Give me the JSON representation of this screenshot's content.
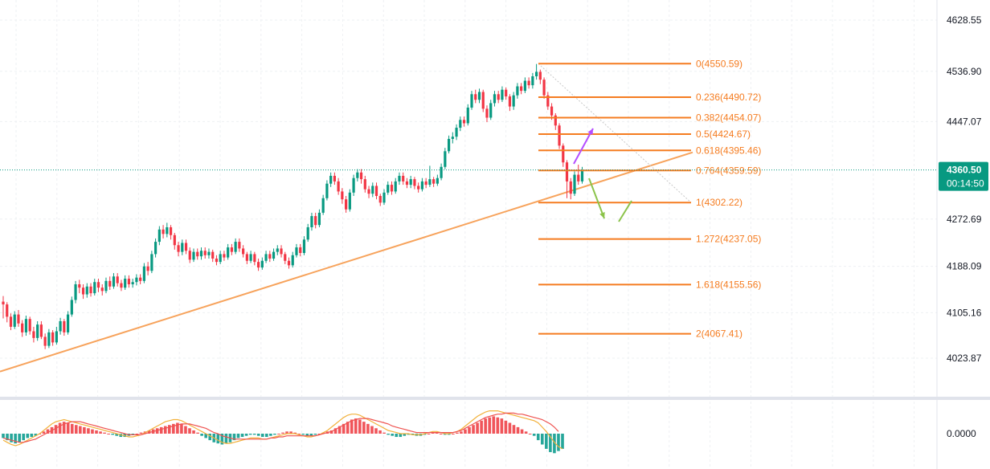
{
  "chart_data": {
    "type": "candlestick",
    "price_axis": {
      "ticks": [
        "4628.55",
        "4536.90",
        "4447.07",
        "4272.69",
        "4188.09",
        "4105.16",
        "4023.87"
      ],
      "tick_values": [
        4628.55,
        4536.9,
        4447.07,
        4272.69,
        4188.09,
        4105.16,
        4023.87
      ],
      "range": [
        3960,
        4660
      ]
    },
    "current_price": {
      "value": 4360.5,
      "label": "4360.50",
      "countdown": "00:14:50",
      "color": "#089981"
    },
    "fibonacci": {
      "color": "#f57c20",
      "levels": [
        {
          "label": "0(4550.59)",
          "price": 4550.59
        },
        {
          "label": "0.236(4490.72)",
          "price": 4490.72
        },
        {
          "label": "0.382(4454.07)",
          "price": 4454.07
        },
        {
          "label": "0.5(4424.67)",
          "price": 4424.67
        },
        {
          "label": "0.618(4395.46)",
          "price": 4395.46
        },
        {
          "label": "0.764(4359.59)",
          "price": 4359.59
        },
        {
          "label": "1(4302.22)",
          "price": 4302.22
        },
        {
          "label": "1.272(4237.05)",
          "price": 4237.05
        },
        {
          "label": "1.618(4155.56)",
          "price": 4155.56
        },
        {
          "label": "2(4067.41)",
          "price": 4067.41
        }
      ]
    },
    "trendline": {
      "color": "#f7a35c",
      "from_price": 4000,
      "to_price": 4392
    },
    "annotations": [
      {
        "kind": "arrow-up",
        "color": "#b44dff"
      },
      {
        "kind": "arrow-down",
        "color": "#8bc34a"
      },
      {
        "kind": "arrow-up",
        "color": "#8bc34a"
      }
    ],
    "candles": [
      [
        4125,
        4120,
        4135,
        4095
      ],
      [
        4120,
        4098,
        4124,
        4088
      ],
      [
        4098,
        4080,
        4104,
        4074
      ],
      [
        4080,
        4102,
        4108,
        4076
      ],
      [
        4102,
        4086,
        4110,
        4080
      ],
      [
        4086,
        4070,
        4092,
        4062
      ],
      [
        4070,
        4094,
        4100,
        4064
      ],
      [
        4094,
        4072,
        4098,
        4066
      ],
      [
        4072,
        4060,
        4080,
        4052
      ],
      [
        4060,
        4084,
        4090,
        4055
      ],
      [
        4084,
        4062,
        4090,
        4058
      ],
      [
        4062,
        4046,
        4068,
        4040
      ],
      [
        4046,
        4070,
        4076,
        4042
      ],
      [
        4070,
        4052,
        4074,
        4046
      ],
      [
        4052,
        4072,
        4080,
        4048
      ],
      [
        4072,
        4090,
        4096,
        4066
      ],
      [
        4090,
        4070,
        4094,
        4064
      ],
      [
        4070,
        4102,
        4108,
        4066
      ],
      [
        4102,
        4128,
        4134,
        4098
      ],
      [
        4128,
        4156,
        4162,
        4122
      ],
      [
        4156,
        4150,
        4164,
        4140
      ],
      [
        4150,
        4138,
        4156,
        4130
      ],
      [
        4138,
        4152,
        4158,
        4132
      ],
      [
        4152,
        4140,
        4158,
        4134
      ],
      [
        4140,
        4160,
        4166,
        4136
      ],
      [
        4160,
        4150,
        4166,
        4142
      ],
      [
        4150,
        4144,
        4156,
        4136
      ],
      [
        4144,
        4162,
        4168,
        4140
      ],
      [
        4162,
        4152,
        4170,
        4146
      ],
      [
        4152,
        4170,
        4176,
        4148
      ],
      [
        4170,
        4158,
        4176,
        4152
      ],
      [
        4158,
        4150,
        4164,
        4144
      ],
      [
        4150,
        4166,
        4172,
        4146
      ],
      [
        4166,
        4156,
        4172,
        4150
      ],
      [
        4156,
        4160,
        4166,
        4150
      ],
      [
        4160,
        4168,
        4174,
        4154
      ],
      [
        4168,
        4162,
        4174,
        4156
      ],
      [
        4162,
        4188,
        4194,
        4158
      ],
      [
        4188,
        4180,
        4196,
        4172
      ],
      [
        4180,
        4210,
        4216,
        4176
      ],
      [
        4210,
        4232,
        4238,
        4204
      ],
      [
        4232,
        4254,
        4260,
        4226
      ],
      [
        4254,
        4246,
        4262,
        4238
      ],
      [
        4246,
        4258,
        4266,
        4240
      ],
      [
        4258,
        4244,
        4262,
        4236
      ],
      [
        4244,
        4226,
        4248,
        4218
      ],
      [
        4226,
        4214,
        4232,
        4206
      ],
      [
        4214,
        4230,
        4236,
        4208
      ],
      [
        4230,
        4216,
        4236,
        4210
      ],
      [
        4216,
        4200,
        4222,
        4194
      ],
      [
        4200,
        4214,
        4220,
        4196
      ],
      [
        4214,
        4206,
        4220,
        4200
      ],
      [
        4206,
        4216,
        4222,
        4200
      ],
      [
        4216,
        4208,
        4222,
        4202
      ],
      [
        4208,
        4214,
        4220,
        4202
      ],
      [
        4214,
        4202,
        4218,
        4196
      ],
      [
        4202,
        4196,
        4208,
        4190
      ],
      [
        4196,
        4210,
        4216,
        4192
      ],
      [
        4210,
        4204,
        4216,
        4198
      ],
      [
        4204,
        4222,
        4228,
        4200
      ],
      [
        4222,
        4214,
        4228,
        4208
      ],
      [
        4214,
        4232,
        4238,
        4210
      ],
      [
        4232,
        4220,
        4238,
        4214
      ],
      [
        4220,
        4210,
        4226,
        4204
      ],
      [
        4210,
        4198,
        4214,
        4192
      ],
      [
        4198,
        4210,
        4216,
        4194
      ],
      [
        4210,
        4196,
        4214,
        4190
      ],
      [
        4196,
        4186,
        4202,
        4180
      ],
      [
        4186,
        4198,
        4204,
        4182
      ],
      [
        4198,
        4210,
        4216,
        4194
      ],
      [
        4210,
        4202,
        4216,
        4196
      ],
      [
        4202,
        4214,
        4220,
        4198
      ],
      [
        4214,
        4220,
        4226,
        4208
      ],
      [
        4220,
        4210,
        4226,
        4204
      ],
      [
        4210,
        4198,
        4214,
        4192
      ],
      [
        4198,
        4190,
        4204,
        4184
      ],
      [
        4190,
        4208,
        4214,
        4186
      ],
      [
        4208,
        4222,
        4228,
        4204
      ],
      [
        4222,
        4212,
        4228,
        4206
      ],
      [
        4212,
        4236,
        4242,
        4208
      ],
      [
        4236,
        4258,
        4264,
        4232
      ],
      [
        4258,
        4278,
        4284,
        4252
      ],
      [
        4278,
        4262,
        4284,
        4256
      ],
      [
        4262,
        4284,
        4290,
        4258
      ],
      [
        4284,
        4310,
        4316,
        4280
      ],
      [
        4310,
        4336,
        4342,
        4306
      ],
      [
        4336,
        4350,
        4356,
        4330
      ],
      [
        4350,
        4340,
        4356,
        4334
      ],
      [
        4340,
        4322,
        4346,
        4316
      ],
      [
        4322,
        4308,
        4328,
        4300
      ],
      [
        4308,
        4290,
        4314,
        4284
      ],
      [
        4290,
        4320,
        4326,
        4286
      ],
      [
        4320,
        4346,
        4352,
        4314
      ],
      [
        4346,
        4356,
        4362,
        4340
      ],
      [
        4356,
        4344,
        4362,
        4336
      ],
      [
        4344,
        4326,
        4350,
        4320
      ],
      [
        4326,
        4318,
        4332,
        4310
      ],
      [
        4318,
        4332,
        4338,
        4312
      ],
      [
        4332,
        4314,
        4338,
        4308
      ],
      [
        4314,
        4302,
        4318,
        4296
      ],
      [
        4302,
        4320,
        4326,
        4298
      ],
      [
        4320,
        4334,
        4340,
        4316
      ],
      [
        4334,
        4322,
        4340,
        4316
      ],
      [
        4322,
        4340,
        4346,
        4318
      ],
      [
        4340,
        4350,
        4356,
        4334
      ],
      [
        4350,
        4340,
        4356,
        4334
      ],
      [
        4340,
        4334,
        4346,
        4328
      ],
      [
        4334,
        4344,
        4350,
        4328
      ],
      [
        4344,
        4332,
        4348,
        4326
      ],
      [
        4332,
        4326,
        4338,
        4320
      ],
      [
        4326,
        4340,
        4346,
        4322
      ],
      [
        4340,
        4334,
        4346,
        4328
      ],
      [
        4334,
        4344,
        4368,
        4330
      ],
      [
        4344,
        4336,
        4348,
        4330
      ],
      [
        4336,
        4346,
        4352,
        4332
      ],
      [
        4346,
        4366,
        4372,
        4342
      ],
      [
        4366,
        4394,
        4400,
        4362
      ],
      [
        4394,
        4416,
        4422,
        4390
      ],
      [
        4416,
        4420,
        4428,
        4408
      ],
      [
        4420,
        4436,
        4442,
        4414
      ],
      [
        4436,
        4450,
        4456,
        4430
      ],
      [
        4450,
        4444,
        4456,
        4438
      ],
      [
        4444,
        4472,
        4478,
        4440
      ],
      [
        4472,
        4496,
        4502,
        4468
      ],
      [
        4496,
        4486,
        4504,
        4480
      ],
      [
        4486,
        4500,
        4506,
        4480
      ],
      [
        4500,
        4470,
        4504,
        4464
      ],
      [
        4470,
        4454,
        4476,
        4446
      ],
      [
        4454,
        4480,
        4486,
        4450
      ],
      [
        4480,
        4496,
        4502,
        4474
      ],
      [
        4496,
        4486,
        4502,
        4480
      ],
      [
        4486,
        4504,
        4510,
        4482
      ],
      [
        4504,
        4492,
        4508,
        4486
      ],
      [
        4492,
        4474,
        4496,
        4466
      ],
      [
        4474,
        4494,
        4500,
        4468
      ],
      [
        4494,
        4510,
        4516,
        4488
      ],
      [
        4510,
        4502,
        4516,
        4496
      ],
      [
        4502,
        4520,
        4526,
        4498
      ],
      [
        4520,
        4512,
        4526,
        4506
      ],
      [
        4512,
        4528,
        4534,
        4506
      ],
      [
        4528,
        4536,
        4550,
        4522
      ],
      [
        4536,
        4522,
        4540,
        4514
      ],
      [
        4522,
        4494,
        4526,
        4488
      ],
      [
        4494,
        4474,
        4500,
        4468
      ],
      [
        4474,
        4458,
        4480,
        4450
      ],
      [
        4458,
        4440,
        4462,
        4432
      ],
      [
        4440,
        4404,
        4444,
        4398
      ],
      [
        4404,
        4374,
        4408,
        4366
      ],
      [
        4374,
        4340,
        4378,
        4310
      ],
      [
        4340,
        4318,
        4346,
        4308
      ],
      [
        4318,
        4352,
        4358,
        4314
      ],
      [
        4352,
        4340,
        4370,
        4334
      ],
      [
        4340,
        4360,
        4366,
        4336
      ]
    ],
    "macd": {
      "zero_label": "0.0000",
      "histogram": [
        -4,
        -6,
        -8,
        -9,
        -8,
        -6,
        -4,
        -3,
        -2,
        0,
        2,
        4,
        6,
        8,
        10,
        11,
        10,
        9,
        8,
        7,
        6,
        5,
        4,
        3,
        2,
        1,
        0,
        -1,
        -2,
        -3,
        -3,
        -2,
        -1,
        0,
        1,
        2,
        3,
        4,
        5,
        6,
        7,
        8,
        9,
        10,
        9,
        7,
        5,
        3,
        1,
        -2,
        -4,
        -6,
        -8,
        -9,
        -10,
        -9,
        -8,
        -6,
        -4,
        -3,
        -2,
        -1,
        -1,
        -2,
        -3,
        -3,
        -2,
        -1,
        0,
        1,
        2,
        2,
        1,
        0,
        -1,
        -2,
        -2,
        -1,
        0,
        1,
        2,
        3,
        5,
        7,
        9,
        11,
        13,
        14,
        13,
        11,
        9,
        7,
        5,
        3,
        1,
        -1,
        -2,
        -3,
        -3,
        -2,
        -1,
        -1,
        -2,
        -2,
        -1,
        0,
        1,
        1,
        0,
        -1,
        -1,
        0,
        1,
        2,
        4,
        6,
        8,
        10,
        12,
        14,
        15,
        16,
        15,
        14,
        12,
        10,
        8,
        6,
        4,
        2,
        0,
        -2,
        -6,
        -10,
        -14,
        -17,
        -18,
        -16,
        -14
      ],
      "macd_line": [
        -6,
        -8,
        -10,
        -11,
        -10,
        -8,
        -6,
        -4,
        -2,
        0,
        3,
        6,
        9,
        11,
        12,
        13,
        12,
        11,
        10,
        9,
        8,
        7,
        6,
        5,
        4,
        3,
        2,
        1,
        0,
        -1,
        -2,
        -3,
        -3,
        -2,
        -1,
        1,
        3,
        5,
        7,
        9,
        11,
        12,
        13,
        13,
        12,
        10,
        8,
        6,
        4,
        2,
        0,
        -2,
        -4,
        -6,
        -8,
        -9,
        -9,
        -8,
        -7,
        -6,
        -5,
        -4,
        -4,
        -4,
        -5,
        -5,
        -4,
        -3,
        -2,
        -1,
        0,
        0,
        0,
        -1,
        -2,
        -3,
        -3,
        -2,
        -1,
        1,
        3,
        6,
        9,
        12,
        15,
        17,
        18,
        18,
        17,
        15,
        13,
        11,
        9,
        7,
        5,
        3,
        2,
        1,
        0,
        0,
        0,
        -1,
        -1,
        -1,
        0,
        1,
        2,
        2,
        1,
        0,
        0,
        1,
        2,
        4,
        7,
        10,
        13,
        16,
        18,
        20,
        21,
        21,
        21,
        20,
        19,
        18,
        17,
        16,
        15,
        14,
        13,
        12,
        10,
        6,
        2,
        -3,
        -8,
        -12,
        -14
      ],
      "signal_line": [
        -4,
        -5,
        -6,
        -7,
        -8,
        -8,
        -7,
        -6,
        -5,
        -3,
        -1,
        1,
        3,
        5,
        7,
        9,
        10,
        11,
        11,
        11,
        10,
        9,
        8,
        7,
        6,
        5,
        4,
        3,
        2,
        1,
        0,
        -1,
        -1,
        -1,
        -1,
        0,
        1,
        2,
        3,
        4,
        5,
        6,
        7,
        8,
        9,
        9,
        9,
        8,
        7,
        6,
        5,
        3,
        1,
        0,
        -2,
        -3,
        -4,
        -5,
        -5,
        -5,
        -5,
        -5,
        -5,
        -5,
        -5,
        -5,
        -4,
        -4,
        -3,
        -3,
        -2,
        -2,
        -2,
        -2,
        -2,
        -2,
        -2,
        -2,
        -1,
        0,
        1,
        2,
        4,
        6,
        8,
        10,
        12,
        13,
        14,
        14,
        14,
        13,
        12,
        11,
        10,
        9,
        7,
        6,
        5,
        4,
        3,
        2,
        1,
        1,
        1,
        1,
        1,
        1,
        1,
        1,
        1,
        1,
        2,
        3,
        5,
        7,
        9,
        11,
        13,
        15,
        16,
        17,
        18,
        18,
        19,
        19,
        19,
        18,
        18,
        17,
        16,
        15,
        14,
        13,
        11,
        9,
        6,
        2
      ],
      "colors": {
        "hist_pos": "#f0555a",
        "hist_neg": "#26a69a",
        "macd": "#f2b13b",
        "signal": "#ef5350"
      }
    }
  }
}
